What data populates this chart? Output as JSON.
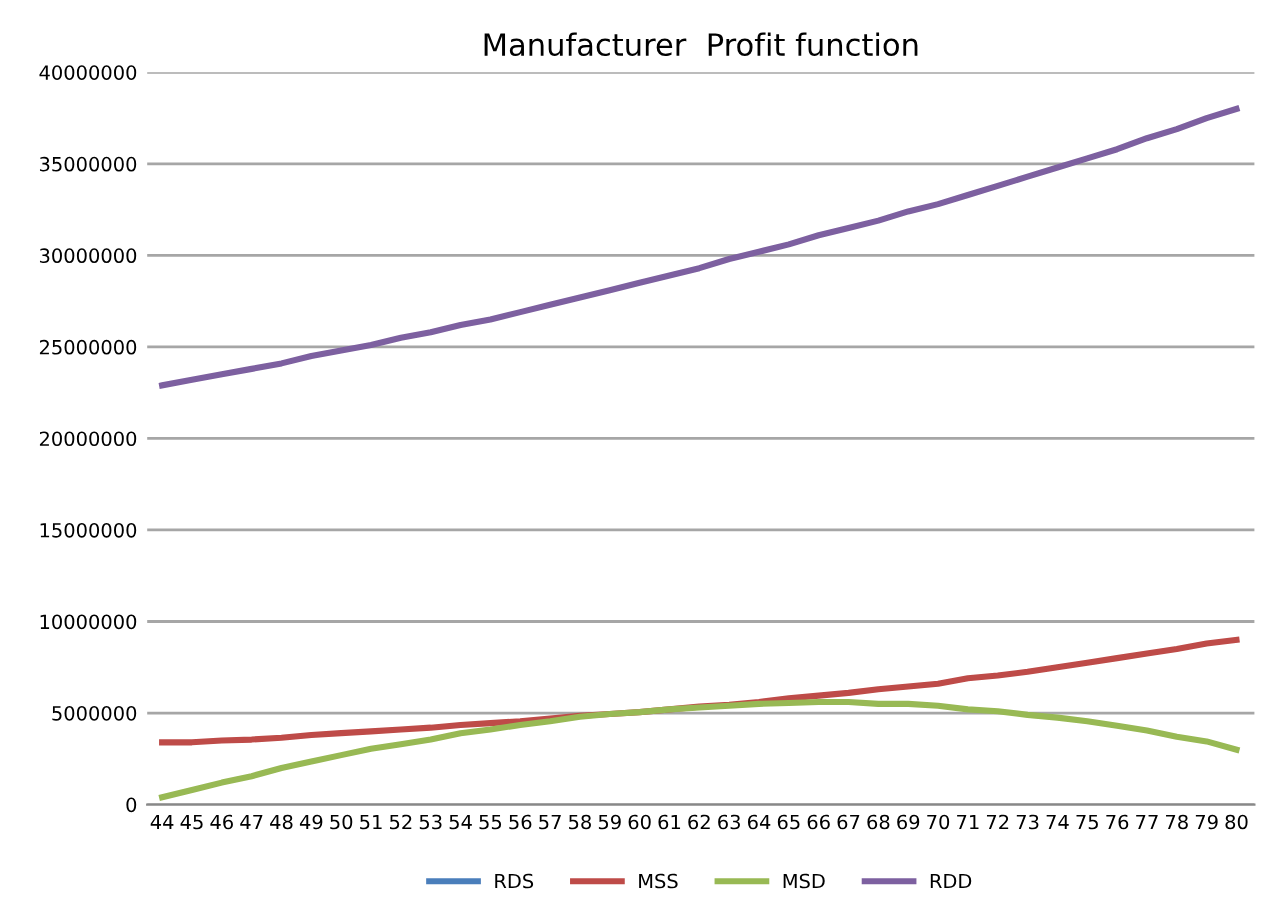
{
  "chart_data": {
    "type": "line",
    "title": "Manufacturer  Profit function",
    "categories": [
      "44",
      "45",
      "46",
      "47",
      "48",
      "49",
      "50",
      "51",
      "52",
      "53",
      "54",
      "55",
      "56",
      "57",
      "58",
      "59",
      "60",
      "61",
      "62",
      "63",
      "64",
      "65",
      "66",
      "67",
      "68",
      "69",
      "70",
      "71",
      "72",
      "73",
      "74",
      "75",
      "76",
      "77",
      "78",
      "79",
      "80"
    ],
    "ylim": [
      0,
      40000000
    ],
    "yticks": [
      0,
      5000000,
      10000000,
      15000000,
      20000000,
      25000000,
      30000000,
      35000000,
      40000000
    ],
    "grid": "y",
    "legend": "bottom",
    "marker": "none",
    "line_style": "solid",
    "series": [
      {
        "name": "RDS",
        "color": "#4a7ebb",
        "values": [
          null,
          null,
          null,
          null,
          null,
          null,
          null,
          null,
          null,
          null,
          null,
          null,
          null,
          null,
          null,
          null,
          null,
          null,
          null,
          null,
          null,
          null,
          null,
          null,
          null,
          null,
          null,
          null,
          null,
          null,
          null,
          null,
          null,
          null,
          null,
          null,
          null
        ]
      },
      {
        "name": "MSS",
        "color": "#be4b48",
        "values": [
          3400000,
          3400000,
          3500000,
          3550000,
          3650000,
          3800000,
          3900000,
          4000000,
          4100000,
          4200000,
          4350000,
          4450000,
          4550000,
          4700000,
          4850000,
          4950000,
          5050000,
          5200000,
          5350000,
          5450000,
          5600000,
          5800000,
          5950000,
          6100000,
          6300000,
          6450000,
          6600000,
          6900000,
          7050000,
          7250000,
          7500000,
          7750000,
          8000000,
          8250000,
          8500000,
          8800000,
          9000000
        ]
      },
      {
        "name": "MSD",
        "color": "#98b954",
        "values": [
          400000,
          800000,
          1200000,
          1550000,
          2000000,
          2350000,
          2700000,
          3050000,
          3300000,
          3550000,
          3900000,
          4100000,
          4350000,
          4550000,
          4800000,
          4950000,
          5050000,
          5200000,
          5300000,
          5400000,
          5500000,
          5550000,
          5600000,
          5600000,
          5500000,
          5500000,
          5400000,
          5200000,
          5100000,
          4900000,
          4750000,
          4550000,
          4300000,
          4050000,
          3700000,
          3450000,
          3000000
        ]
      },
      {
        "name": "RDD",
        "color": "#7d60a0",
        "values": [
          22900000,
          23200000,
          23500000,
          23800000,
          24100000,
          24500000,
          24800000,
          25100000,
          25500000,
          25800000,
          26200000,
          26500000,
          26900000,
          27300000,
          27700000,
          28100000,
          28500000,
          28900000,
          29300000,
          29800000,
          30200000,
          30600000,
          31100000,
          31500000,
          31900000,
          32400000,
          32800000,
          33300000,
          33800000,
          34300000,
          34800000,
          35300000,
          35800000,
          36400000,
          36900000,
          37500000,
          38000000
        ]
      }
    ]
  }
}
